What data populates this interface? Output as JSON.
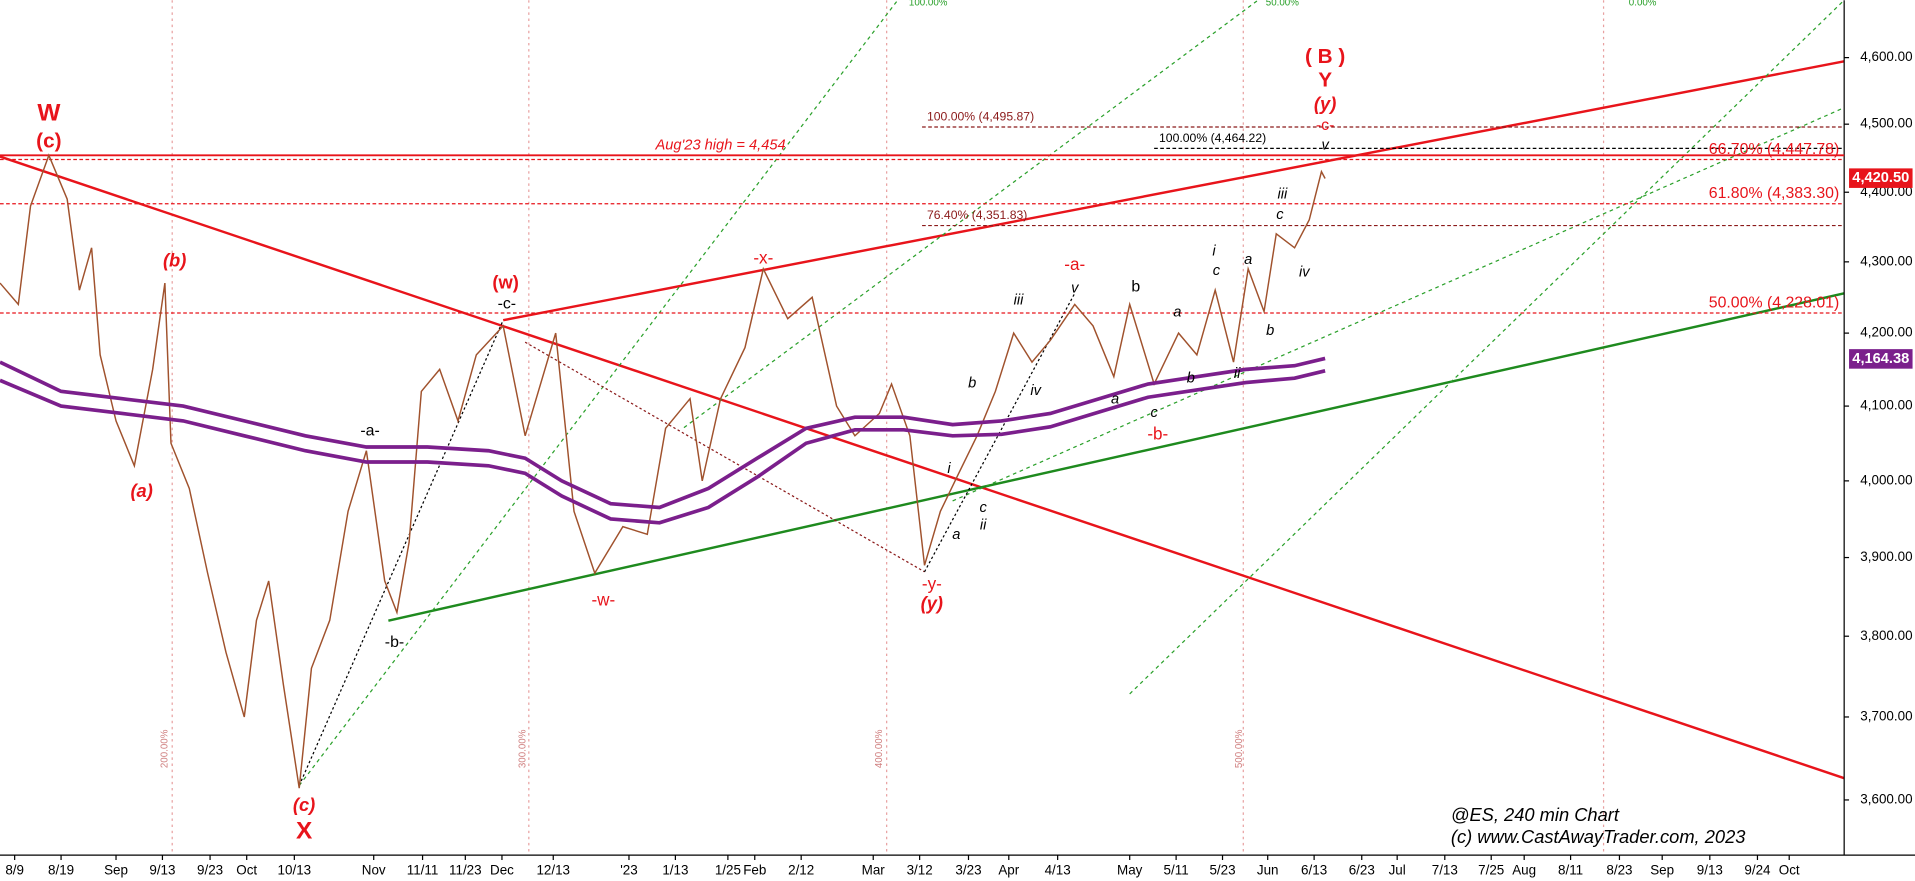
{
  "chart_data": {
    "type": "line",
    "log_scale": true,
    "ylim": [
      3535,
      4688
    ],
    "yticks": [
      {
        "value": 3600,
        "label": "3,600.00"
      },
      {
        "value": 3700,
        "label": "3,700.00"
      },
      {
        "value": 3800,
        "label": "3,800.00"
      },
      {
        "value": 3900,
        "label": "3,900.00"
      },
      {
        "value": 4000,
        "label": "4,000.00"
      },
      {
        "value": 4100,
        "label": "4,100.00"
      },
      {
        "value": 4200,
        "label": "4,200.00"
      },
      {
        "value": 4300,
        "label": "4,300.00"
      },
      {
        "value": 4400,
        "label": "4,400.00"
      },
      {
        "value": 4500,
        "label": "4,500.00"
      },
      {
        "value": 4600,
        "label": "4,600.00"
      }
    ],
    "xlim": [
      0,
      1510
    ],
    "xticks": [
      {
        "value": 12,
        "label": "8/9"
      },
      {
        "value": 50,
        "label": "8/19"
      },
      {
        "value": 95,
        "label": "Sep"
      },
      {
        "value": 133,
        "label": "9/13"
      },
      {
        "value": 172,
        "label": "9/23"
      },
      {
        "value": 202,
        "label": "Oct"
      },
      {
        "value": 241,
        "label": "10/13"
      },
      {
        "value": 306,
        "label": "Nov"
      },
      {
        "value": 346,
        "label": "11/11"
      },
      {
        "value": 381,
        "label": "11/23"
      },
      {
        "value": 411,
        "label": "Dec"
      },
      {
        "value": 453,
        "label": "12/13"
      },
      {
        "value": 515,
        "label": "'23"
      },
      {
        "value": 553,
        "label": "1/13"
      },
      {
        "value": 596,
        "label": "1/25"
      },
      {
        "value": 618,
        "label": "Feb"
      },
      {
        "value": 656,
        "label": "2/12"
      },
      {
        "value": 715,
        "label": "Mar"
      },
      {
        "value": 753,
        "label": "3/12"
      },
      {
        "value": 793,
        "label": "3/23"
      },
      {
        "value": 826,
        "label": "Apr"
      },
      {
        "value": 866,
        "label": "4/13"
      },
      {
        "value": 925,
        "label": "May"
      },
      {
        "value": 963,
        "label": "5/11"
      },
      {
        "value": 1001,
        "label": "5/23"
      },
      {
        "value": 1038,
        "label": "Jun"
      },
      {
        "value": 1076,
        "label": "6/13"
      },
      {
        "value": 1115,
        "label": "6/23"
      },
      {
        "value": 1144,
        "label": "Jul"
      },
      {
        "value": 1183,
        "label": "7/13"
      },
      {
        "value": 1221,
        "label": "7/25"
      },
      {
        "value": 1248,
        "label": "Aug"
      },
      {
        "value": 1286,
        "label": "8/11"
      },
      {
        "value": 1326,
        "label": "8/23"
      },
      {
        "value": 1361,
        "label": "Sep"
      },
      {
        "value": 1400,
        "label": "9/13"
      },
      {
        "value": 1439,
        "label": "9/24"
      },
      {
        "value": 1465,
        "label": "Oct"
      }
    ],
    "series": [
      {
        "color": "#a0522d",
        "x": [
          0,
          15,
          25,
          40,
          55,
          65,
          75,
          82,
          95,
          110,
          125,
          135,
          140,
          155,
          170,
          185,
          200,
          210,
          220,
          232,
          245,
          255,
          270,
          285,
          300,
          315,
          325,
          335,
          345,
          360,
          375,
          390,
          412,
          430,
          455,
          470,
          487,
          510,
          530,
          545,
          565,
          575,
          590,
          610,
          625,
          645,
          665,
          685,
          700,
          720,
          730,
          745,
          757,
          770,
          785,
          800,
          815,
          830,
          845,
          860,
          880,
          895,
          912,
          925,
          945,
          965,
          980,
          995,
          1010,
          1022,
          1035,
          1045,
          1060,
          1072,
          1082,
          1085
        ],
        "values": [
          4270,
          4240,
          4380,
          4454,
          4390,
          4260,
          4320,
          4170,
          4080,
          4020,
          4150,
          4270,
          4050,
          3990,
          3880,
          3780,
          3700,
          3820,
          3870,
          3740,
          3614,
          3760,
          3820,
          3960,
          4040,
          3870,
          3830,
          3920,
          4120,
          4150,
          4080,
          4170,
          4210,
          4060,
          4200,
          3960,
          3880,
          3940,
          3930,
          4070,
          4110,
          4000,
          4110,
          4180,
          4290,
          4220,
          4250,
          4100,
          4060,
          4090,
          4130,
          4060,
          3890,
          3960,
          4010,
          4060,
          4120,
          4200,
          4160,
          4190,
          4240,
          4210,
          4140,
          4240,
          4130,
          4200,
          4170,
          4260,
          4160,
          4290,
          4230,
          4340,
          4320,
          4360,
          4430,
          4420
        ]
      },
      {
        "color": "#7b1f8c",
        "x": [
          0,
          50,
          100,
          150,
          200,
          250,
          300,
          350,
          400,
          430,
          460,
          500,
          540,
          580,
          620,
          660,
          700,
          740,
          780,
          820,
          860,
          900,
          940,
          980,
          1020,
          1060,
          1085
        ],
        "values": [
          4160,
          4120,
          4110,
          4100,
          4080,
          4060,
          4045,
          4045,
          4040,
          4030,
          4000,
          3970,
          3965,
          3990,
          4030,
          4070,
          4085,
          4085,
          4075,
          4080,
          4090,
          4110,
          4130,
          4140,
          4150,
          4155,
          4165
        ]
      },
      {
        "color": "#7b1f8c",
        "x": [
          0,
          50,
          100,
          150,
          200,
          250,
          300,
          350,
          400,
          430,
          460,
          500,
          540,
          580,
          620,
          660,
          700,
          740,
          780,
          820,
          860,
          900,
          940,
          980,
          1020,
          1060,
          1085
        ],
        "values": [
          4135,
          4100,
          4090,
          4080,
          4060,
          4040,
          4025,
          4025,
          4020,
          4010,
          3980,
          3950,
          3945,
          3965,
          4005,
          4050,
          4068,
          4068,
          4060,
          4062,
          4072,
          4092,
          4112,
          4122,
          4132,
          4138,
          4148
        ]
      }
    ],
    "levels": [
      {
        "value": 4495.87,
        "label": "100.00% (4,495.87)",
        "color": "#8b1a1a"
      },
      {
        "value": 4464.22,
        "label": "100.00% (4,464.22)",
        "color": "#000000"
      },
      {
        "value": 4351.83,
        "label": "76.40% (4,351.83)",
        "color": "#8b1a1a"
      },
      {
        "value": 4447.78,
        "label": "66.70% (4,447.78)",
        "color": "#e8141b"
      },
      {
        "value": 4383.3,
        "label": "61.80% (4,383.30)",
        "color": "#e8141b"
      },
      {
        "value": 4228.01,
        "label": "50.00% (4,228.01)",
        "color": "#e8141b"
      }
    ],
    "high_line": {
      "value": 4454,
      "label": "Aug'23 high = 4,454"
    },
    "last_values": [
      {
        "value": 4420.5,
        "label": "4,420.50",
        "color": "#e8141b"
      },
      {
        "value": 4164.38,
        "label": "4,164.38",
        "color": "#7b1f8c"
      }
    ],
    "wave_labels": [
      "W",
      "(c)",
      "(b)",
      "(a)",
      "-a-",
      "-b-",
      "(c)",
      "X",
      "(w)",
      "-c-",
      "-w-",
      "-x-",
      "-y-",
      "(y)",
      "a",
      "b",
      "i",
      "ii",
      "c",
      "iii",
      "iv",
      "-a-",
      "v",
      "b",
      "a",
      "c",
      "-b-",
      "a",
      "b",
      "i",
      "c",
      "ii",
      "a",
      "b",
      "c",
      "iii",
      "iv",
      "( B )",
      "Y",
      "(y)",
      "-c-",
      "v"
    ],
    "cycle_labels": [
      "200.00%",
      "300.00%",
      "400.00%",
      "500.00%",
      "100.00%",
      "50.00%",
      "0.00%"
    ],
    "credits": [
      "@ES, 240 min Chart",
      "(c) www.CastAwayTrader.com, 2023"
    ]
  }
}
